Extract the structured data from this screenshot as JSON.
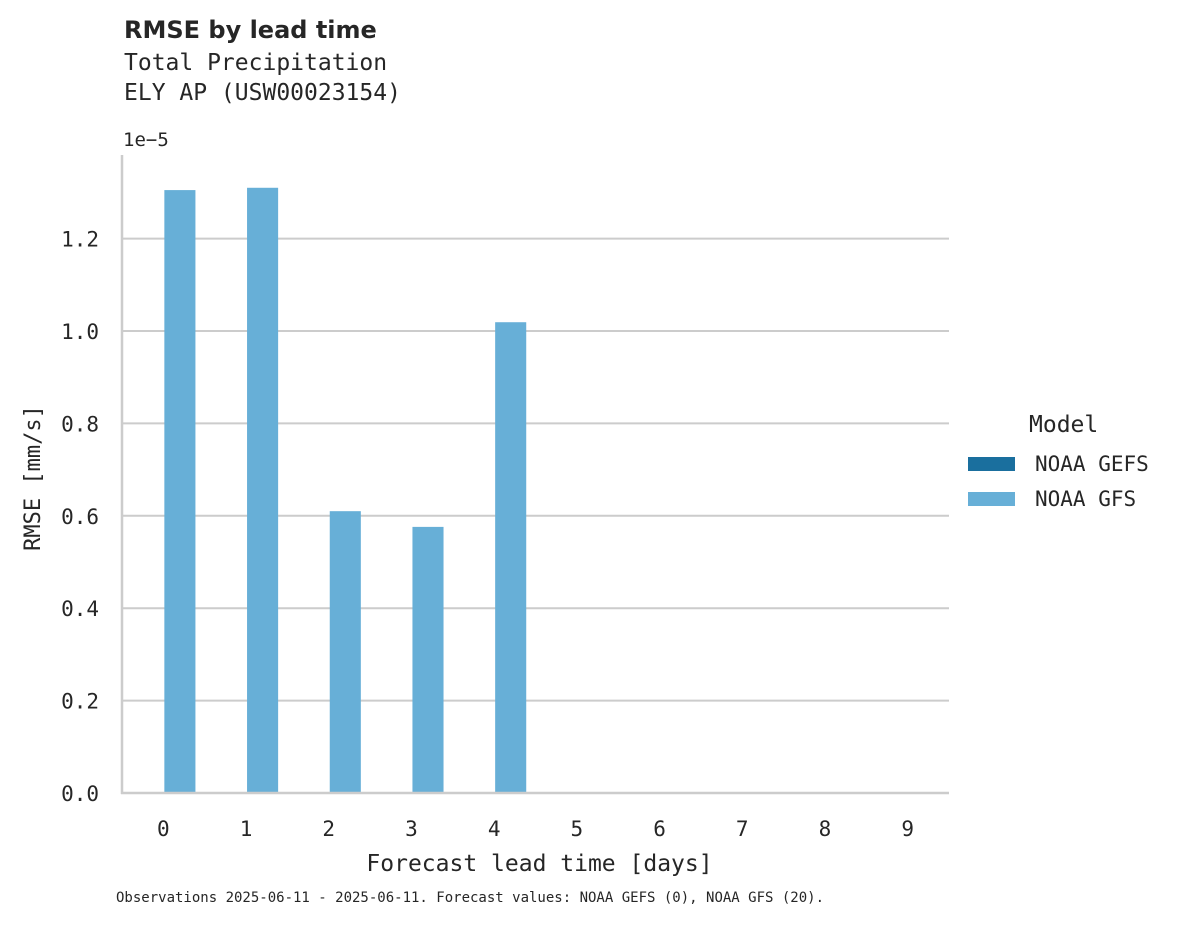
{
  "header": {
    "title": "RMSE by lead time",
    "subtitle_line1": "Total Precipitation",
    "subtitle_line2": "ELY AP (USW00023154)",
    "scale_label": "1e−5"
  },
  "legend": {
    "title": "Model",
    "items": [
      {
        "label": "NOAA GEFS",
        "color": "#1a6f9e"
      },
      {
        "label": "NOAA GFS",
        "color": "#67afd7"
      }
    ]
  },
  "footer": {
    "note": "Observations 2025-06-11 - 2025-06-11. Forecast values: NOAA GEFS (0), NOAA GFS (20)."
  },
  "chart_data": {
    "type": "bar",
    "title": "RMSE by lead time",
    "subtitle": "Total Precipitation / ELY AP (USW00023154)",
    "xlabel": "Forecast lead time [days]",
    "ylabel": "RMSE [mm/s]",
    "y_scale_multiplier": "1e-5",
    "categories": [
      "0",
      "1",
      "2",
      "3",
      "4",
      "5",
      "6",
      "7",
      "8",
      "9"
    ],
    "series": [
      {
        "name": "NOAA GEFS",
        "color": "#1a6f9e",
        "values": [
          null,
          null,
          null,
          null,
          null,
          null,
          null,
          null,
          null,
          null
        ]
      },
      {
        "name": "NOAA GFS",
        "color": "#67afd7",
        "values": [
          1.305,
          1.31,
          0.61,
          0.576,
          1.019,
          null,
          null,
          null,
          null,
          null
        ]
      }
    ],
    "ylim": [
      0,
      1.38
    ],
    "yticks": [
      "0.0",
      "0.2",
      "0.4",
      "0.6",
      "0.8",
      "1.0",
      "1.2"
    ],
    "grid": "horizontal",
    "legend_position": "right"
  }
}
